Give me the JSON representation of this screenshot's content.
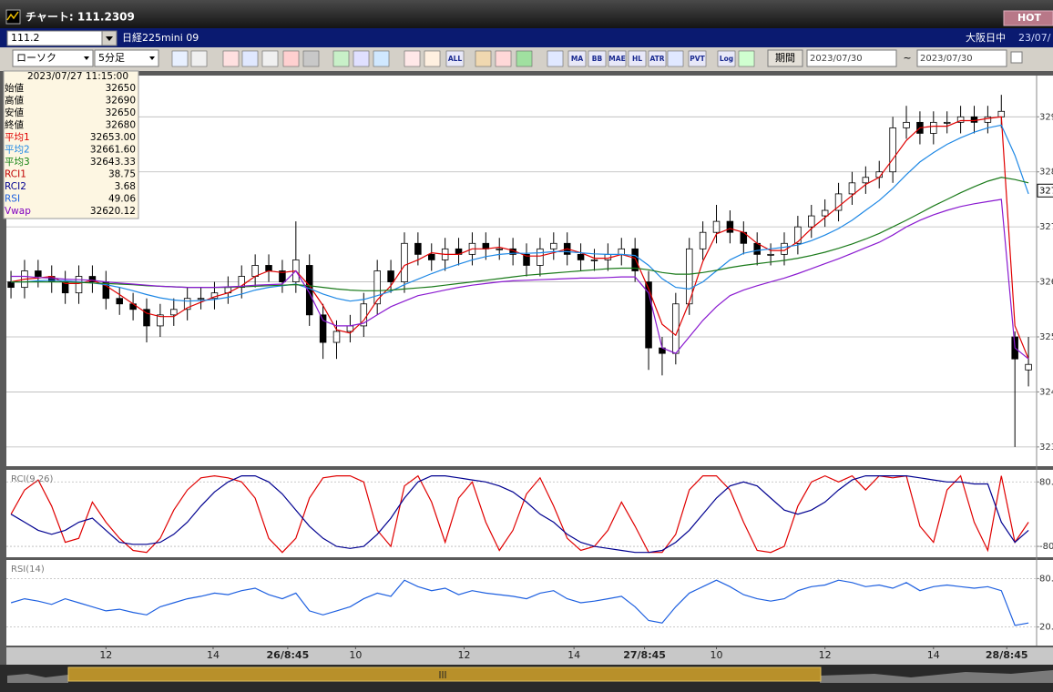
{
  "window": {
    "title": "チャート: 111.2309",
    "badge": "HOT"
  },
  "symbol_bar": {
    "code": "111.2",
    "name": "日経225mini 09",
    "market": "大阪日中",
    "date": "23/07/"
  },
  "toolbar": {
    "chart_type": "ローソク",
    "interval": "5分足",
    "buttons": [
      "ALL",
      "MA",
      "BB",
      "MAE",
      "HL",
      "ATR",
      "PVT",
      "Log"
    ],
    "period_label": "期間",
    "from": "2023/07/30",
    "tilde": "~",
    "to": "2023/07/30"
  },
  "info_panel": {
    "datetime": "2023/07/27  11:15:00",
    "rows": [
      {
        "label": "始値",
        "value": "32650",
        "color": "#000000"
      },
      {
        "label": "高値",
        "value": "32690",
        "color": "#000000"
      },
      {
        "label": "安値",
        "value": "32650",
        "color": "#000000"
      },
      {
        "label": "終値",
        "value": "32680",
        "color": "#000000"
      },
      {
        "label": "平均1",
        "value": "32653.00",
        "color": "#e00000"
      },
      {
        "label": "平均2",
        "value": "32661.60",
        "color": "#1e88e5"
      },
      {
        "label": "平均3",
        "value": "32643.33",
        "color": "#108010"
      },
      {
        "label": "RCI1",
        "value": "38.75",
        "color": "#c00000"
      },
      {
        "label": "RCI2",
        "value": "3.68",
        "color": "#000090"
      },
      {
        "label": "RSI",
        "value": "49.06",
        "color": "#1e60e0"
      },
      {
        "label": "Vwap",
        "value": "32620.12",
        "color": "#8000c0"
      }
    ]
  },
  "chart_data": [
    {
      "type": "candlestick",
      "categories": [
        null,
        null,
        null,
        null,
        null,
        null,
        null,
        null,
        null,
        null,
        null,
        null,
        null,
        null,
        null,
        null,
        null,
        null,
        null,
        null,
        null,
        null,
        null,
        null,
        null,
        null,
        null,
        null,
        null,
        null,
        null,
        null,
        null,
        null,
        null,
        null,
        null,
        null,
        null,
        null,
        null,
        null,
        null,
        null,
        null,
        null,
        null,
        null,
        null,
        null,
        null,
        null,
        null,
        null,
        null,
        null,
        null,
        null,
        null,
        null,
        null,
        null,
        null,
        null,
        null,
        null,
        null,
        null,
        null,
        null,
        null,
        null,
        null,
        null,
        null,
        null
      ],
      "xlim": [
        -0.34,
        75.6
      ],
      "xticks": [
        {
          "value": 7,
          "label": "12"
        },
        {
          "value": 14.9,
          "label": "14"
        },
        {
          "value": 20.4,
          "label": "26/8:45"
        },
        {
          "value": 25.4,
          "label": "10"
        },
        {
          "value": 33.4,
          "label": "12"
        },
        {
          "value": 41.5,
          "label": "14"
        },
        {
          "value": 46.7,
          "label": "27/8:45"
        },
        {
          "value": 52,
          "label": "10"
        },
        {
          "value": 60,
          "label": "12"
        },
        {
          "value": 68,
          "label": "14"
        },
        {
          "value": 73.4,
          "label": "28/8:45"
        }
      ],
      "ylim": [
        32265,
        32975
      ],
      "yticks": [
        {
          "value": 32300,
          "label": "323"
        },
        {
          "value": 32400,
          "label": "324"
        },
        {
          "value": 32500,
          "label": "325"
        },
        {
          "value": 32600,
          "label": "326"
        },
        {
          "value": 32700,
          "label": "327"
        },
        {
          "value": 32800,
          "label": "328"
        },
        {
          "value": 32900,
          "label": "329"
        }
      ],
      "grid": true,
      "up_color": "#ffffff",
      "down_color": "#000000",
      "open": [
        32600,
        32590,
        32620,
        32610,
        32600,
        32580,
        32610,
        32600,
        32570,
        32560,
        32550,
        32520,
        32540,
        32550,
        32570,
        32570,
        32580,
        32590,
        32610,
        32630,
        32620,
        32600,
        32630,
        32540,
        32490,
        32510,
        32520,
        32560,
        32620,
        32600,
        32670,
        32650,
        32640,
        32660,
        32650,
        32670,
        32660,
        32660,
        32650,
        32630,
        32660,
        32670,
        32650,
        32640,
        32640,
        32650,
        32660,
        32600,
        32480,
        32470,
        32560,
        32660,
        32690,
        32710,
        32690,
        32670,
        32650,
        32650,
        32670,
        32700,
        32720,
        32730,
        32760,
        32780,
        32790,
        32800,
        32880,
        32890,
        32870,
        32890,
        32890,
        32900,
        32890,
        32900,
        32500,
        32440
      ],
      "high": [
        32620,
        32640,
        32640,
        32630,
        32620,
        32630,
        32630,
        32620,
        32590,
        32580,
        32570,
        32560,
        32570,
        32590,
        32590,
        32600,
        32610,
        32630,
        32650,
        32650,
        32640,
        32710,
        32650,
        32560,
        32530,
        32540,
        32580,
        32640,
        32640,
        32690,
        32690,
        32670,
        32680,
        32680,
        32690,
        32690,
        32680,
        32680,
        32670,
        32680,
        32690,
        32690,
        32670,
        32660,
        32670,
        32680,
        32680,
        32620,
        32500,
        32580,
        32680,
        32710,
        32740,
        32730,
        32710,
        32690,
        32670,
        32690,
        32720,
        32740,
        32750,
        32780,
        32800,
        32810,
        32820,
        32900,
        32920,
        32910,
        32910,
        32910,
        32920,
        32920,
        32920,
        32940,
        32510,
        32500
      ],
      "low": [
        32570,
        32570,
        32590,
        32580,
        32560,
        32560,
        32580,
        32550,
        32540,
        32530,
        32490,
        32500,
        32520,
        32530,
        32550,
        32550,
        32560,
        32570,
        32590,
        32600,
        32580,
        32580,
        32520,
        32460,
        32460,
        32490,
        32500,
        32540,
        32580,
        32580,
        32630,
        32620,
        32620,
        32630,
        32630,
        32640,
        32640,
        32630,
        32610,
        32610,
        32640,
        32630,
        32620,
        32620,
        32620,
        32630,
        32600,
        32440,
        32430,
        32450,
        32540,
        32640,
        32670,
        32670,
        32650,
        32630,
        32630,
        32630,
        32650,
        32680,
        32700,
        32710,
        32740,
        32760,
        32770,
        32780,
        32860,
        32850,
        32850,
        32870,
        32870,
        32870,
        32870,
        32880,
        32300,
        32410
      ],
      "close": [
        32590,
        32620,
        32610,
        32600,
        32580,
        32610,
        32600,
        32570,
        32560,
        32550,
        32520,
        32540,
        32550,
        32570,
        32570,
        32580,
        32590,
        32610,
        32630,
        32620,
        32600,
        32640,
        32540,
        32490,
        32510,
        32520,
        32560,
        32620,
        32600,
        32670,
        32650,
        32640,
        32660,
        32650,
        32670,
        32660,
        32660,
        32650,
        32630,
        32660,
        32670,
        32650,
        32640,
        32640,
        32650,
        32660,
        32620,
        32480,
        32470,
        32560,
        32660,
        32690,
        32710,
        32690,
        32670,
        32650,
        32650,
        32670,
        32700,
        32720,
        32730,
        32760,
        32780,
        32790,
        32800,
        32880,
        32890,
        32870,
        32890,
        32890,
        32900,
        32890,
        32900,
        32910,
        32460,
        32450
      ],
      "series": [
        {
          "color": "#e00000",
          "values": [
            32600,
            32605,
            32607,
            32610,
            32597,
            32597,
            32603,
            32593,
            32577,
            32560,
            32543,
            32537,
            32537,
            32553,
            32563,
            32573,
            32580,
            32593,
            32610,
            32620,
            32617,
            32620,
            32593,
            32557,
            32513,
            32507,
            32530,
            32567,
            32593,
            32630,
            32640,
            32653,
            32650,
            32650,
            32660,
            32660,
            32663,
            32657,
            32647,
            32647,
            32653,
            32660,
            32653,
            32643,
            32643,
            32650,
            32643,
            32587,
            32523,
            32503,
            32563,
            32637,
            32687,
            32697,
            32690,
            32670,
            32657,
            32657,
            32673,
            32697,
            32717,
            32737,
            32757,
            32777,
            32790,
            32823,
            32857,
            32880,
            32883,
            32883,
            32893,
            32893,
            32897,
            32900,
            32520,
            32460
          ]
        },
        {
          "color": "#1e88e5",
          "values": [
            32600,
            32600,
            32602,
            32603,
            32602,
            32600,
            32598,
            32595,
            32590,
            32584,
            32577,
            32571,
            32567,
            32565,
            32566,
            32568,
            32572,
            32578,
            32585,
            32590,
            32593,
            32596,
            32588,
            32578,
            32570,
            32565,
            32568,
            32575,
            32583,
            32595,
            32605,
            32615,
            32624,
            32632,
            32640,
            32646,
            32650,
            32652,
            32652,
            32653,
            32655,
            32655,
            32653,
            32651,
            32650,
            32650,
            32648,
            32630,
            32606,
            32590,
            32587,
            32600,
            32620,
            32640,
            32652,
            32657,
            32660,
            32663,
            32667,
            32675,
            32685,
            32697,
            32712,
            32730,
            32748,
            32770,
            32795,
            32818,
            32835,
            32850,
            32862,
            32872,
            32880,
            32885,
            32830,
            32760
          ]
        },
        {
          "color": "#1a7a1a",
          "values": [
            32600,
            32600,
            32600,
            32600,
            32600,
            32599,
            32598,
            32597,
            32596,
            32595,
            32593,
            32592,
            32591,
            32590,
            32590,
            32590,
            32590,
            32591,
            32592,
            32593,
            32594,
            32595,
            32593,
            32590,
            32587,
            32585,
            32584,
            32584,
            32585,
            32587,
            32589,
            32591,
            32594,
            32597,
            32600,
            32603,
            32606,
            32609,
            32612,
            32614,
            32616,
            32618,
            32620,
            32622,
            32624,
            32625,
            32625,
            32622,
            32617,
            32614,
            32614,
            32617,
            32621,
            32626,
            32630,
            32633,
            32636,
            32639,
            32643,
            32648,
            32654,
            32661,
            32669,
            32678,
            32688,
            32700,
            32712,
            32725,
            32738,
            32750,
            32762,
            32773,
            32783,
            32790,
            32786,
            32780
          ]
        },
        {
          "color": "#8a1ad0",
          "values": [
            32610,
            32610,
            32608,
            32607,
            32605,
            32604,
            32603,
            32600,
            32598,
            32596,
            32594,
            32592,
            32591,
            32590,
            32590,
            32590,
            32591,
            32592,
            32594,
            32595,
            32596,
            32620,
            32580,
            32530,
            32520,
            32520,
            32525,
            32540,
            32555,
            32565,
            32575,
            32580,
            32585,
            32590,
            32594,
            32597,
            32600,
            32602,
            32603,
            32604,
            32605,
            32606,
            32607,
            32607,
            32608,
            32609,
            32609,
            32580,
            32480,
            32470,
            32500,
            32530,
            32555,
            32575,
            32585,
            32593,
            32600,
            32607,
            32615,
            32624,
            32633,
            32642,
            32652,
            32662,
            32672,
            32685,
            32700,
            32712,
            32722,
            32730,
            32737,
            32742,
            32746,
            32750,
            32480,
            32460
          ]
        }
      ],
      "price_marker": {
        "value": 32766,
        "label": "327"
      }
    },
    {
      "type": "line",
      "title": "RCI(9,26)",
      "ylim": [
        -107,
        110
      ],
      "yticks": [
        {
          "value": 80,
          "label": "80."
        },
        {
          "value": -80,
          "label": "-80"
        }
      ],
      "grid": true,
      "series": [
        {
          "color": "#e00000",
          "values": [
            0,
            60,
            85,
            20,
            -70,
            -60,
            30,
            -20,
            -60,
            -90,
            -95,
            -60,
            10,
            60,
            90,
            95,
            90,
            80,
            40,
            -60,
            -95,
            -60,
            40,
            90,
            95,
            95,
            80,
            -40,
            -80,
            70,
            95,
            30,
            -70,
            40,
            80,
            -20,
            -90,
            -40,
            50,
            90,
            20,
            -60,
            -90,
            -80,
            -40,
            30,
            -30,
            -95,
            -95,
            -50,
            60,
            95,
            95,
            60,
            -20,
            -90,
            -95,
            -80,
            20,
            80,
            95,
            80,
            95,
            60,
            95,
            90,
            95,
            -30,
            -70,
            60,
            95,
            -20,
            -90,
            95,
            -70,
            -20
          ]
        },
        {
          "color": "#000090",
          "values": [
            0,
            -20,
            -40,
            -50,
            -40,
            -20,
            -10,
            -40,
            -70,
            -75,
            -75,
            -70,
            -50,
            -20,
            20,
            55,
            80,
            95,
            95,
            80,
            50,
            10,
            -30,
            -60,
            -80,
            -85,
            -80,
            -50,
            -10,
            40,
            80,
            95,
            95,
            90,
            85,
            80,
            70,
            55,
            30,
            0,
            -20,
            -50,
            -70,
            -80,
            -85,
            -90,
            -95,
            -95,
            -90,
            -70,
            -40,
            0,
            40,
            70,
            80,
            70,
            40,
            10,
            0,
            10,
            30,
            60,
            85,
            95,
            95,
            95,
            95,
            90,
            85,
            80,
            80,
            75,
            75,
            -20,
            -70,
            -40
          ]
        }
      ]
    },
    {
      "type": "line",
      "title": "RSI(14)",
      "ylim": [
        -3,
        103
      ],
      "yticks": [
        {
          "value": 80,
          "label": "80."
        },
        {
          "value": 20,
          "label": "20."
        }
      ],
      "grid": true,
      "series": [
        {
          "color": "#1e60e0",
          "values": [
            50,
            55,
            52,
            48,
            55,
            50,
            45,
            40,
            42,
            38,
            35,
            45,
            50,
            55,
            58,
            62,
            60,
            65,
            68,
            60,
            55,
            62,
            40,
            35,
            40,
            45,
            55,
            62,
            58,
            78,
            70,
            65,
            68,
            60,
            65,
            62,
            60,
            58,
            55,
            62,
            65,
            55,
            50,
            52,
            55,
            58,
            45,
            28,
            25,
            45,
            62,
            70,
            78,
            70,
            60,
            55,
            52,
            55,
            65,
            70,
            72,
            78,
            75,
            70,
            72,
            68,
            75,
            65,
            70,
            72,
            70,
            68,
            70,
            65,
            22,
            25
          ]
        }
      ]
    }
  ]
}
